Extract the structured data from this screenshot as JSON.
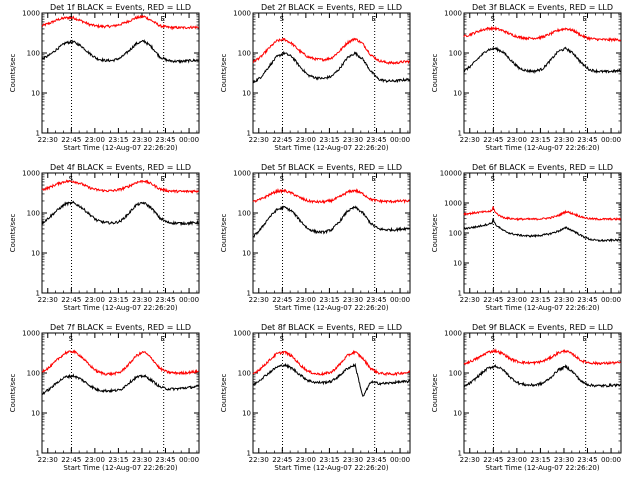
{
  "chart_data": {
    "type": "line",
    "layout": "3x3 grid",
    "x_axis": {
      "label": "Start Time (12-Aug-07 22:26:20)",
      "range": [
        "22:26:20",
        "00:06:20"
      ],
      "tick_labels": [
        "22:30",
        "22:45",
        "23:00",
        "23:15",
        "23:30",
        "23:45",
        "00:00"
      ],
      "tick_minutes": [
        3.67,
        18.67,
        33.67,
        48.67,
        63.67,
        78.67,
        93.67
      ],
      "range_minutes": [
        0,
        100
      ]
    },
    "y_axis": {
      "label": "Counts/sec",
      "scale": "log"
    },
    "series_legend": {
      "black": "Events",
      "red": "LLD"
    },
    "marker_lines": {
      "S": {
        "minute": 18.8,
        "style": "dotted",
        "label": "S"
      },
      "E": {
        "minute": 77.5,
        "style": "dotted",
        "label": "E"
      }
    },
    "panels": [
      {
        "title": "Det 1f BLACK = Events, RED = LLD",
        "ylim": [
          1,
          1000
        ],
        "ytick_labels": [
          "1",
          "10",
          "100",
          "1000"
        ],
        "series": [
          {
            "color": "#ff0000",
            "x": [
              0,
              5,
              10,
              15,
              20,
              25,
              30,
              35,
              40,
              45,
              50,
              55,
              60,
              65,
              70,
              75,
              80,
              85,
              90,
              95,
              100
            ],
            "y": [
              480,
              560,
              680,
              760,
              760,
              640,
              520,
              470,
              460,
              470,
              520,
              620,
              760,
              820,
              640,
              480,
              440,
              430,
              430,
              440,
              440
            ]
          },
          {
            "color": "#000000",
            "x": [
              0,
              5,
              10,
              15,
              20,
              25,
              30,
              35,
              40,
              45,
              50,
              55,
              60,
              65,
              70,
              75,
              80,
              85,
              90,
              95,
              100
            ],
            "y": [
              70,
              90,
              130,
              180,
              190,
              150,
              100,
              72,
              65,
              65,
              75,
              110,
              170,
              200,
              140,
              80,
              65,
              62,
              62,
              65,
              65
            ]
          }
        ]
      },
      {
        "title": "Det 2f BLACK = Events, RED = LLD",
        "ylim": [
          1,
          1000
        ],
        "ytick_labels": [
          "1",
          "10",
          "100",
          "1000"
        ],
        "series": [
          {
            "color": "#ff0000",
            "x": [
              0,
              5,
              10,
              15,
              20,
              25,
              30,
              35,
              40,
              45,
              50,
              55,
              60,
              65,
              70,
              75,
              80,
              85,
              90,
              95,
              100
            ],
            "y": [
              60,
              80,
              130,
              200,
              220,
              170,
              110,
              80,
              70,
              68,
              75,
              110,
              180,
              230,
              170,
              90,
              65,
              58,
              56,
              60,
              62
            ]
          },
          {
            "color": "#000000",
            "x": [
              0,
              5,
              10,
              15,
              20,
              25,
              30,
              35,
              40,
              45,
              50,
              55,
              60,
              65,
              70,
              75,
              80,
              85,
              90,
              95,
              100
            ],
            "y": [
              18,
              25,
              45,
              80,
              100,
              80,
              45,
              28,
              24,
              23,
              26,
              40,
              75,
              100,
              70,
              35,
              22,
              20,
              20,
              21,
              22
            ]
          }
        ]
      },
      {
        "title": "Det 3f BLACK = Events, RED = LLD",
        "ylim": [
          1,
          1000
        ],
        "ytick_labels": [
          "1",
          "10",
          "100",
          "1000"
        ],
        "series": [
          {
            "color": "#ff0000",
            "x": [
              0,
              5,
              10,
              15,
              20,
              25,
              30,
              35,
              40,
              45,
              50,
              55,
              60,
              65,
              70,
              75,
              80,
              85,
              90,
              95,
              100
            ],
            "y": [
              260,
              300,
              360,
              410,
              410,
              360,
              290,
              250,
              235,
              235,
              250,
              300,
              370,
              410,
              360,
              270,
              230,
              220,
              215,
              215,
              215
            ]
          },
          {
            "color": "#000000",
            "x": [
              0,
              5,
              10,
              15,
              20,
              25,
              30,
              35,
              40,
              45,
              50,
              55,
              60,
              65,
              70,
              75,
              80,
              85,
              90,
              95,
              100
            ],
            "y": [
              35,
              50,
              80,
              120,
              130,
              105,
              65,
              42,
              36,
              35,
              40,
              65,
              110,
              130,
              95,
              55,
              38,
              35,
              34,
              35,
              36
            ]
          }
        ]
      },
      {
        "title": "Det 4f BLACK = Events, RED = LLD",
        "ylim": [
          1,
          1000
        ],
        "ytick_labels": [
          "1",
          "10",
          "100",
          "1000"
        ],
        "series": [
          {
            "color": "#ff0000",
            "x": [
              0,
              5,
              10,
              15,
              20,
              25,
              30,
              35,
              40,
              45,
              50,
              55,
              60,
              65,
              70,
              75,
              80,
              85,
              90,
              95,
              100
            ],
            "y": [
              380,
              440,
              540,
              620,
              620,
              540,
              430,
              380,
              360,
              360,
              390,
              460,
              580,
              640,
              530,
              400,
              360,
              350,
              345,
              350,
              355
            ]
          },
          {
            "color": "#000000",
            "x": [
              0,
              5,
              10,
              15,
              20,
              25,
              30,
              35,
              40,
              45,
              50,
              55,
              60,
              65,
              70,
              75,
              80,
              85,
              90,
              95,
              100
            ],
            "y": [
              55,
              80,
              120,
              170,
              180,
              140,
              95,
              65,
              58,
              56,
              62,
              95,
              160,
              180,
              130,
              75,
              58,
              56,
              55,
              56,
              58
            ]
          }
        ]
      },
      {
        "title": "Det 5f BLACK = Events, RED = LLD",
        "ylim": [
          1,
          1000
        ],
        "ytick_labels": [
          "1",
          "10",
          "100",
          "1000"
        ],
        "series": [
          {
            "color": "#ff0000",
            "x": [
              0,
              5,
              10,
              15,
              20,
              25,
              30,
              35,
              40,
              45,
              50,
              55,
              60,
              65,
              70,
              75,
              80,
              85,
              90,
              95,
              100
            ],
            "y": [
              190,
              220,
              280,
              350,
              360,
              310,
              240,
              200,
              190,
              190,
              205,
              250,
              330,
              370,
              300,
              220,
              200,
              195,
              195,
              200,
              200
            ]
          },
          {
            "color": "#000000",
            "x": [
              0,
              5,
              10,
              15,
              20,
              25,
              30,
              35,
              40,
              45,
              50,
              55,
              60,
              65,
              70,
              75,
              80,
              85,
              90,
              95,
              100
            ],
            "y": [
              25,
              40,
              75,
              120,
              140,
              110,
              65,
              40,
              34,
              33,
              38,
              60,
              110,
              140,
              100,
              55,
              40,
              38,
              38,
              40,
              42
            ]
          }
        ]
      },
      {
        "title": "Det 6f BLACK = Events, RED = LLD",
        "ylim": [
          1,
          10000
        ],
        "ytick_labels": [
          "1",
          "10",
          "100",
          "1000",
          "10000"
        ],
        "series": [
          {
            "color": "#ff0000",
            "x": [
              0,
              4,
              8,
              12,
              16,
              18,
              18.5,
              19,
              20,
              22,
              25,
              30,
              35,
              40,
              45,
              50,
              55,
              60,
              65,
              70,
              75,
              80,
              85,
              90,
              95,
              100
            ],
            "y": [
              430,
              450,
              480,
              500,
              520,
              560,
              760,
              650,
              480,
              400,
              330,
              300,
              290,
              290,
              290,
              300,
              320,
              380,
              520,
              430,
              340,
              300,
              290,
              290,
              290,
              290
            ]
          },
          {
            "color": "#000000",
            "x": [
              0,
              4,
              8,
              12,
              16,
              18,
              18.5,
              19,
              20,
              22,
              25,
              30,
              35,
              40,
              45,
              50,
              55,
              60,
              65,
              70,
              75,
              80,
              85,
              90,
              95,
              100
            ],
            "y": [
              140,
              150,
              160,
              180,
              200,
              220,
              300,
              260,
              190,
              160,
              120,
              95,
              85,
              80,
              80,
              85,
              95,
              115,
              150,
              115,
              80,
              62,
              56,
              56,
              58,
              58
            ]
          }
        ]
      },
      {
        "title": "Det 7f BLACK = Events, RED = LLD",
        "ylim": [
          1,
          1000
        ],
        "ytick_labels": [
          "1",
          "10",
          "100",
          "1000"
        ],
        "series": [
          {
            "color": "#ff0000",
            "x": [
              0,
              5,
              10,
              15,
              20,
              25,
              30,
              35,
              40,
              45,
              50,
              55,
              60,
              65,
              70,
              75,
              80,
              85,
              90,
              95,
              100
            ],
            "y": [
              110,
              140,
              220,
              320,
              350,
              260,
              160,
              110,
              95,
              95,
              105,
              160,
              270,
              340,
              230,
              130,
              105,
              100,
              100,
              105,
              110
            ]
          },
          {
            "color": "#000000",
            "x": [
              0,
              5,
              10,
              15,
              20,
              25,
              30,
              35,
              40,
              45,
              50,
              55,
              60,
              65,
              70,
              75,
              80,
              85,
              90,
              95,
              100
            ],
            "y": [
              30,
              40,
              60,
              80,
              85,
              70,
              50,
              38,
              36,
              36,
              38,
              55,
              78,
              85,
              65,
              45,
              40,
              40,
              42,
              44,
              46
            ]
          }
        ]
      },
      {
        "title": "Det 8f BLACK = Events, RED = LLD",
        "ylim": [
          1,
          1000
        ],
        "ytick_labels": [
          "1",
          "10",
          "100",
          "1000"
        ],
        "series": [
          {
            "color": "#ff0000",
            "x": [
              0,
              5,
              10,
              15,
              20,
              25,
              30,
              35,
              40,
              45,
              50,
              55,
              60,
              65,
              70,
              75,
              80,
              85,
              90,
              95,
              100
            ],
            "y": [
              95,
              130,
              200,
              300,
              340,
              260,
              160,
              110,
              95,
              95,
              105,
              160,
              270,
              340,
              230,
              130,
              100,
              95,
              95,
              100,
              105
            ]
          },
          {
            "color": "#000000",
            "x": [
              0,
              5,
              10,
              15,
              20,
              25,
              30,
              35,
              40,
              45,
              50,
              55,
              60,
              65,
              70,
              75,
              80,
              85,
              90,
              95,
              100
            ],
            "y": [
              50,
              70,
              100,
              140,
              160,
              130,
              90,
              65,
              58,
              58,
              62,
              85,
              130,
              160,
              25,
              60,
              55,
              55,
              58,
              60,
              62
            ]
          }
        ]
      },
      {
        "title": "Det 9f BLACK = Events, RED = LLD",
        "ylim": [
          1,
          1000
        ],
        "ytick_labels": [
          "1",
          "10",
          "100",
          "1000"
        ],
        "series": [
          {
            "color": "#ff0000",
            "x": [
              0,
              5,
              10,
              15,
              20,
              25,
              30,
              35,
              40,
              45,
              50,
              55,
              60,
              65,
              70,
              75,
              80,
              85,
              90,
              95,
              100
            ],
            "y": [
              170,
              200,
              250,
              330,
              360,
              300,
              220,
              190,
              180,
              180,
              195,
              240,
              320,
              360,
              280,
              200,
              180,
              175,
              175,
              180,
              180
            ]
          },
          {
            "color": "#000000",
            "x": [
              0,
              5,
              10,
              15,
              20,
              25,
              30,
              35,
              40,
              45,
              50,
              55,
              60,
              65,
              70,
              75,
              80,
              85,
              90,
              95,
              100
            ],
            "y": [
              45,
              60,
              90,
              130,
              150,
              120,
              75,
              55,
              50,
              50,
              55,
              75,
              120,
              145,
              100,
              60,
              50,
              48,
              48,
              50,
              50
            ]
          }
        ]
      }
    ]
  }
}
